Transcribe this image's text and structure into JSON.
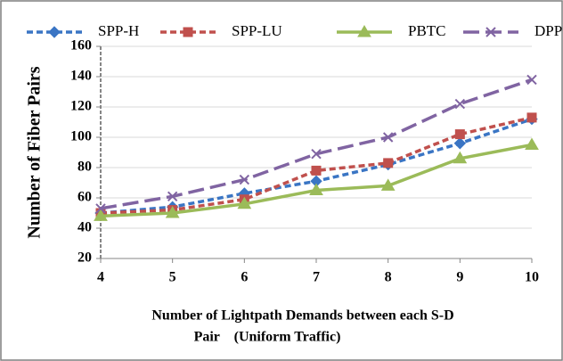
{
  "chart_data": {
    "type": "line",
    "ylabel": "Number of Fiber Pairs",
    "xlabel": [
      "Number of Lightpath Demands between  each S-D",
      "Pair    (Uniform Traffic)"
    ],
    "x": [
      4,
      5,
      6,
      7,
      8,
      9,
      10
    ],
    "xlim": [
      4,
      10
    ],
    "xticks": [
      4,
      5,
      6,
      7,
      8,
      9,
      10
    ],
    "ylim": [
      20,
      160
    ],
    "yticks": [
      20,
      40,
      60,
      80,
      100,
      120,
      140,
      160
    ],
    "grid": true,
    "legend": "top",
    "series": [
      {
        "name": "SPP-H",
        "color": "#3a75c4",
        "dash": "dashed",
        "marker": "diamond",
        "values": [
          50,
          54,
          63,
          71,
          82,
          96,
          112
        ]
      },
      {
        "name": "SPP-LU",
        "color": "#c0504d",
        "dash": "dashed",
        "marker": "square",
        "values": [
          50,
          52,
          59,
          78,
          83,
          102,
          113
        ]
      },
      {
        "name": "PBTC",
        "color": "#9bbb59",
        "dash": "solid",
        "marker": "triangle",
        "values": [
          48,
          50,
          56,
          65,
          68,
          86,
          95
        ]
      },
      {
        "name": "DPP",
        "color": "#8064a2",
        "dash": "longdash",
        "marker": "x",
        "values": [
          53,
          61,
          72,
          89,
          100,
          122,
          138
        ]
      }
    ]
  }
}
